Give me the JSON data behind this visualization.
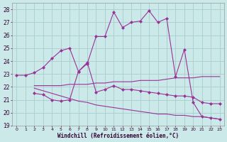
{
  "background_color": "#cbe9e9",
  "grid_color": "#aacccc",
  "line_color": "#993399",
  "marker_color": "#993399",
  "xlabel": "Windchill (Refroidissement éolien,°C)",
  "xlim": [
    -0.5,
    23.5
  ],
  "ylim": [
    19,
    28.5
  ],
  "yticks": [
    19,
    20,
    21,
    22,
    23,
    24,
    25,
    26,
    27,
    28
  ],
  "xticks": [
    0,
    1,
    2,
    3,
    4,
    5,
    6,
    7,
    8,
    9,
    10,
    11,
    12,
    13,
    14,
    15,
    16,
    17,
    18,
    19,
    20,
    21,
    22,
    23
  ],
  "series": [
    {
      "x": [
        0,
        1,
        2,
        3,
        4,
        5,
        6,
        7,
        8,
        9,
        10,
        11,
        12,
        13,
        14,
        15,
        16,
        17,
        18,
        19,
        20,
        21,
        22,
        23
      ],
      "y": [
        22.9,
        22.9,
        23.1,
        23.5,
        24.2,
        24.8,
        25.0,
        23.2,
        23.8,
        25.9,
        25.9,
        27.8,
        26.6,
        27.0,
        27.1,
        27.9,
        27.0,
        27.3,
        22.8,
        24.9,
        20.8,
        19.7,
        19.6,
        19.5
      ],
      "with_markers": true
    },
    {
      "x": [
        2,
        3,
        4,
        5,
        6,
        7,
        8,
        9,
        10,
        11,
        12,
        13,
        14,
        15,
        16,
        17,
        18,
        19,
        20,
        21,
        22,
        23
      ],
      "y": [
        22.1,
        22.1,
        22.1,
        22.1,
        22.2,
        22.2,
        22.2,
        22.3,
        22.3,
        22.4,
        22.4,
        22.4,
        22.5,
        22.5,
        22.5,
        22.6,
        22.7,
        22.7,
        22.7,
        22.8,
        22.8,
        22.8
      ],
      "with_markers": false
    },
    {
      "x": [
        2,
        3,
        4,
        5,
        6,
        7,
        8,
        9,
        10,
        11,
        12,
        13,
        14,
        15,
        16,
        17,
        18,
        19,
        20,
        21,
        22,
        23
      ],
      "y": [
        21.9,
        21.7,
        21.5,
        21.3,
        21.1,
        20.9,
        20.8,
        20.6,
        20.5,
        20.4,
        20.3,
        20.2,
        20.1,
        20.0,
        19.9,
        19.9,
        19.8,
        19.8,
        19.7,
        19.7,
        19.6,
        19.5
      ],
      "with_markers": false
    },
    {
      "x": [
        2,
        3,
        4,
        5,
        6,
        7,
        8,
        9,
        10,
        11,
        12,
        13,
        14,
        15,
        16,
        17,
        18,
        19,
        20,
        21,
        22,
        23
      ],
      "y": [
        21.5,
        21.4,
        21.0,
        20.9,
        21.0,
        23.2,
        23.9,
        21.6,
        21.8,
        22.1,
        21.8,
        21.8,
        21.7,
        21.6,
        21.5,
        21.4,
        21.3,
        21.3,
        21.2,
        20.8,
        20.7,
        20.7
      ],
      "with_markers": true
    }
  ]
}
